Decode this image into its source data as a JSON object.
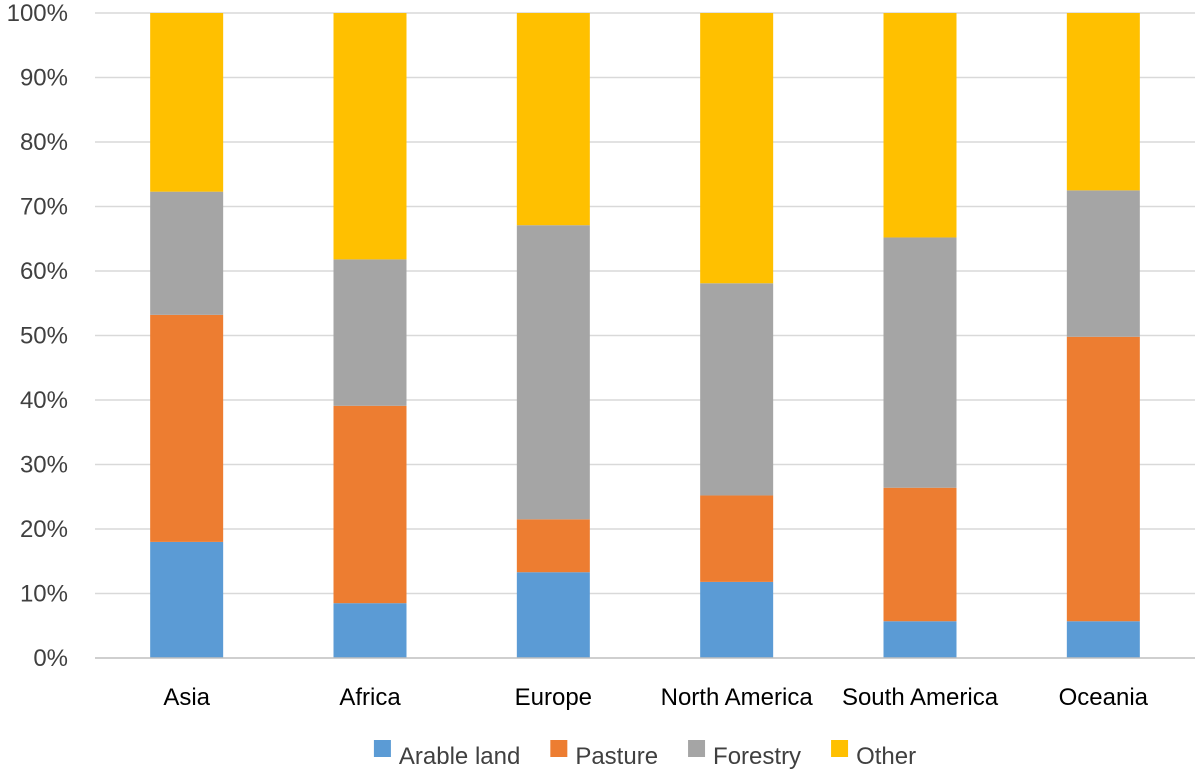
{
  "chart_data": {
    "type": "bar",
    "stacked": true,
    "categories": [
      "Asia",
      "Africa",
      "Europe",
      "North America",
      "South America",
      "Oceania"
    ],
    "series": [
      {
        "name": "Arable land",
        "color": "#5b9bd5",
        "values": [
          18,
          8.5,
          13.3,
          11.8,
          5.7,
          5.7
        ]
      },
      {
        "name": "Pasture",
        "color": "#ed7d31",
        "values": [
          35.2,
          30.6,
          8.2,
          13.4,
          20.7,
          44.1
        ]
      },
      {
        "name": "Forestry",
        "color": "#a5a5a5",
        "values": [
          19.1,
          22.7,
          45.6,
          32.9,
          38.8,
          22.7
        ]
      },
      {
        "name": "Other",
        "color": "#ffc000",
        "values": [
          27.7,
          38.2,
          32.9,
          41.9,
          34.8,
          27.5
        ]
      }
    ],
    "ylim": [
      0,
      100
    ],
    "yticks": [
      "0%",
      "10%",
      "20%",
      "30%",
      "40%",
      "50%",
      "60%",
      "70%",
      "80%",
      "90%",
      "100%"
    ],
    "grid": true,
    "legend_position": "bottom"
  }
}
